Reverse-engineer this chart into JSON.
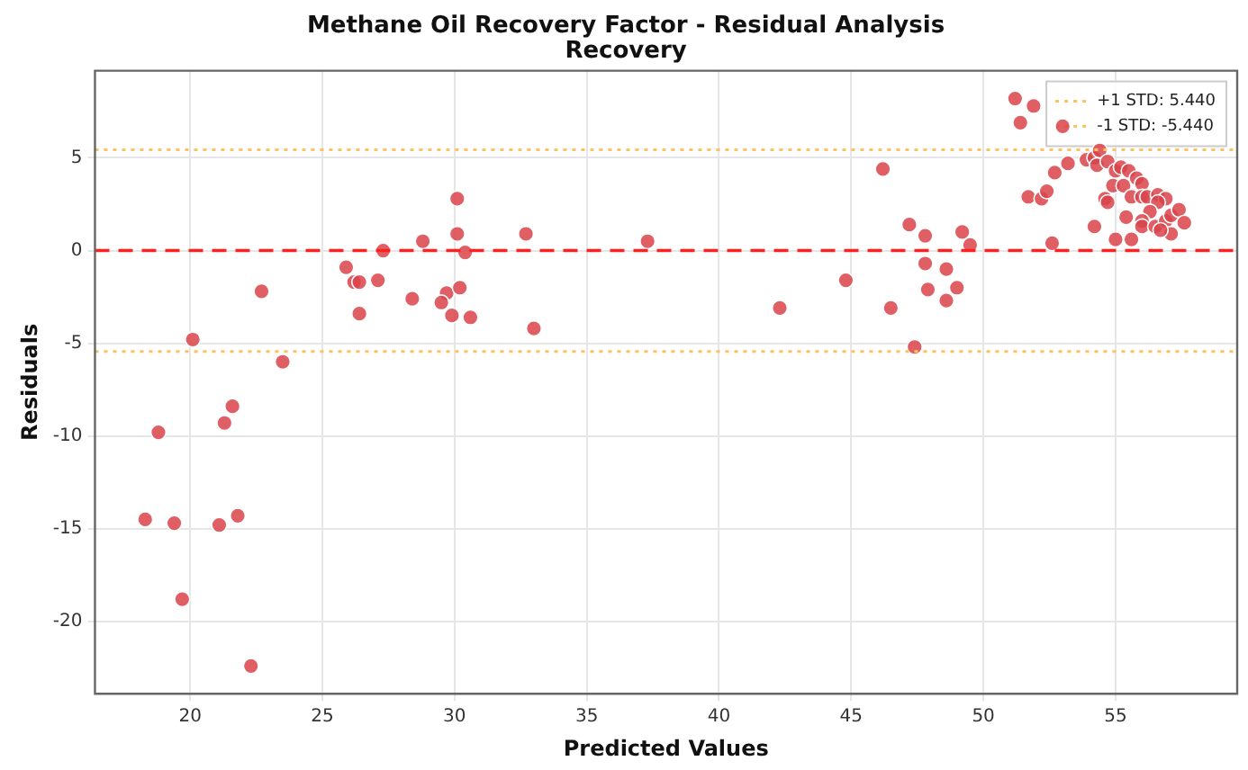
{
  "chart_data": {
    "type": "scatter",
    "title": "Methane Oil Recovery Factor - Residual Analysis\nRecovery",
    "xlabel": "Predicted Values",
    "ylabel": "Residuals",
    "xlim": [
      16.4,
      59.6
    ],
    "xticks": [
      20,
      25,
      30,
      35,
      40,
      45,
      50,
      55
    ],
    "ylim": [
      -23.9,
      9.7
    ],
    "yticks": [
      -20,
      -15,
      -10,
      -5,
      0,
      5
    ],
    "grid": true,
    "legend": "top right",
    "marker": "circle",
    "ref_lines": [
      {
        "axis": "y",
        "value": 0,
        "color": "#ff2020",
        "line_style": "dashed"
      },
      {
        "axis": "y",
        "value": 5.44,
        "label": "+1 STD: 5.440",
        "color": "#ffc060",
        "line_style": "dotted"
      },
      {
        "axis": "y",
        "value": -5.44,
        "label": "-1 STD: -5.440",
        "color": "#ffc060",
        "line_style": "dotted"
      }
    ],
    "series": [
      {
        "color": "#d9434a",
        "x": [
          18.3,
          18.8,
          19.4,
          19.7,
          20.1,
          21.1,
          21.3,
          21.6,
          21.8,
          22.3,
          22.7,
          23.5,
          25.9,
          26.2,
          26.4,
          26.4,
          27.1,
          27.3,
          28.4,
          28.8,
          29.7,
          29.5,
          29.9,
          30.2,
          30.6,
          30.1,
          30.1,
          30.4,
          32.7,
          33.0,
          37.3,
          42.3,
          44.8,
          46.2,
          46.5,
          47.4,
          47.2,
          47.8,
          47.8,
          47.9,
          48.6,
          48.6,
          49.0,
          49.2,
          49.5,
          51.2,
          51.4,
          51.9,
          53.0,
          51.7,
          52.2,
          52.4,
          52.6,
          52.7,
          53.2,
          53.9,
          54.2,
          54.4,
          54.3,
          54.7,
          55.0,
          55.2,
          55.5,
          55.8,
          56.0,
          54.9,
          55.3,
          55.6,
          56.0,
          56.2,
          56.6,
          56.9,
          54.6,
          54.7,
          56.6,
          56.3,
          55.4,
          56.0,
          56.0,
          56.5,
          56.9,
          57.1,
          57.4,
          57.6,
          57.1,
          56.7,
          54.2,
          55.0,
          55.6
        ],
        "values": [
          -14.5,
          -9.8,
          -14.7,
          -18.8,
          -4.8,
          -14.8,
          -9.3,
          -8.4,
          -14.3,
          -22.4,
          -2.2,
          -6.0,
          -0.9,
          -1.7,
          -1.7,
          -3.4,
          -1.6,
          0.0,
          -2.6,
          0.5,
          -2.3,
          -2.8,
          -3.5,
          -2.0,
          -3.6,
          2.8,
          0.9,
          -0.1,
          0.9,
          -4.2,
          0.5,
          -3.1,
          -1.6,
          4.4,
          -3.1,
          -5.2,
          1.4,
          0.8,
          -0.7,
          -2.1,
          -1.0,
          -2.7,
          -2.0,
          1.0,
          0.3,
          8.2,
          6.9,
          7.8,
          6.7,
          2.9,
          2.8,
          3.2,
          0.4,
          4.2,
          4.7,
          4.9,
          5.0,
          5.4,
          4.6,
          4.8,
          4.3,
          4.5,
          4.3,
          3.9,
          3.6,
          3.5,
          3.5,
          2.9,
          2.9,
          2.9,
          3.0,
          2.8,
          2.8,
          2.6,
          2.6,
          2.1,
          1.8,
          1.6,
          1.3,
          1.3,
          1.6,
          1.9,
          2.2,
          1.5,
          0.9,
          1.1,
          1.3,
          0.6,
          0.6
        ]
      }
    ]
  }
}
